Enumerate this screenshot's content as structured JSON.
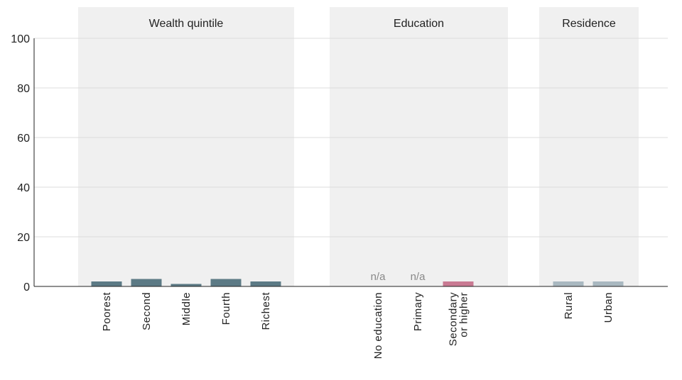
{
  "chart_data": {
    "type": "bar",
    "ylim": [
      0,
      100
    ],
    "yticks": [
      0,
      20,
      40,
      60,
      80,
      100
    ],
    "grid": true,
    "groups": [
      {
        "title": "Wealth quintile",
        "color": "#5c7a85",
        "categories": [
          {
            "lines": [
              "Poorest"
            ],
            "value": 2
          },
          {
            "lines": [
              "Second"
            ],
            "value": 3
          },
          {
            "lines": [
              "Middle"
            ],
            "value": 1
          },
          {
            "lines": [
              "Fourth"
            ],
            "value": 3
          },
          {
            "lines": [
              "Richest"
            ],
            "value": 2
          }
        ]
      },
      {
        "title": "Education",
        "color": "#c97a93",
        "categories": [
          {
            "lines": [
              "No education"
            ],
            "value": null,
            "note": "n/a"
          },
          {
            "lines": [
              "Primary"
            ],
            "value": null,
            "note": "n/a"
          },
          {
            "lines": [
              "Secondary",
              "or higher"
            ],
            "value": 2
          }
        ]
      },
      {
        "title": "Residence",
        "color": "#a9b8c0",
        "categories": [
          {
            "lines": [
              "Rural"
            ],
            "value": 2
          },
          {
            "lines": [
              "Urban"
            ],
            "value": 2
          }
        ]
      }
    ]
  },
  "colors": {
    "panel": "#f0f0f0",
    "grid": "#dddddd",
    "axis": "#222222",
    "text": "#222222",
    "note": "#888888"
  }
}
